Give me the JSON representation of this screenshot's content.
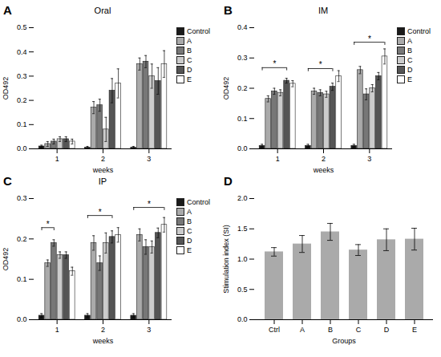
{
  "chart_data": [
    {
      "type": "bar",
      "title": "Oral",
      "annotations": [
        "A"
      ],
      "xlabel": "weeks",
      "ylabel": "OD492",
      "categories": [
        "1",
        "2",
        "3"
      ],
      "series": [
        {
          "name": "Control",
          "color": "#1a1a1a",
          "values": [
            0.01,
            0.005,
            0.005
          ],
          "errors": [
            0.005,
            0.005,
            0.005
          ]
        },
        {
          "name": "A",
          "color": "#aaaaaa",
          "values": [
            0.02,
            0.17,
            0.35
          ],
          "errors": [
            0.01,
            0.025,
            0.025
          ]
        },
        {
          "name": "B",
          "color": "#777777",
          "values": [
            0.03,
            0.18,
            0.36
          ],
          "errors": [
            0.01,
            0.025,
            0.025
          ]
        },
        {
          "name": "C",
          "color": "#cccccc",
          "values": [
            0.04,
            0.08,
            0.3
          ],
          "errors": [
            0.01,
            0.05,
            0.05
          ]
        },
        {
          "name": "D",
          "color": "#555555",
          "values": [
            0.04,
            0.24,
            0.28
          ],
          "errors": [
            0.01,
            0.05,
            0.055
          ]
        },
        {
          "name": "E",
          "color": "#ffffff",
          "values": [
            0.03,
            0.27,
            0.35
          ],
          "errors": [
            0.01,
            0.06,
            0.055
          ]
        }
      ],
      "ylim": [
        0,
        0.5
      ],
      "yticks": [
        {
          "value": 0,
          "label": "0.0"
        },
        0.1,
        0.2,
        0.3,
        0.4,
        0.5
      ],
      "grid": false,
      "legend": "right",
      "significance": []
    },
    {
      "type": "bar",
      "title": "IM",
      "annotations": [
        "B"
      ],
      "xlabel": "weeks",
      "ylabel": "OD492",
      "categories": [
        "1",
        "2",
        "3"
      ],
      "series": [
        {
          "name": "Control",
          "color": "#1a1a1a",
          "values": [
            0.01,
            0.01,
            0.01
          ],
          "errors": [
            0.005,
            0.005,
            0.005
          ]
        },
        {
          "name": "A",
          "color": "#aaaaaa",
          "values": [
            0.165,
            0.19,
            0.26
          ],
          "errors": [
            0.01,
            0.01,
            0.012
          ]
        },
        {
          "name": "B",
          "color": "#777777",
          "values": [
            0.19,
            0.185,
            0.18
          ],
          "errors": [
            0.01,
            0.01,
            0.018
          ]
        },
        {
          "name": "C",
          "color": "#cccccc",
          "values": [
            0.185,
            0.18,
            0.2
          ],
          "errors": [
            0.01,
            0.01,
            0.012
          ]
        },
        {
          "name": "D",
          "color": "#555555",
          "values": [
            0.225,
            0.205,
            0.24
          ],
          "errors": [
            0.008,
            0.012,
            0.012
          ]
        },
        {
          "name": "E",
          "color": "#ffffff",
          "values": [
            0.215,
            0.24,
            0.305
          ],
          "errors": [
            0.01,
            0.018,
            0.025
          ]
        }
      ],
      "ylim": [
        0,
        0.4
      ],
      "yticks": [
        {
          "value": 0,
          "label": "0.0"
        },
        0.1,
        0.2,
        0.3,
        0.4
      ],
      "grid": false,
      "legend": "right",
      "significance": [
        {
          "category": "1",
          "from": "Control",
          "to": "D",
          "y": 0.268,
          "label": "*"
        },
        {
          "category": "2",
          "from": "Control",
          "to": "D",
          "y": 0.265,
          "label": "*"
        },
        {
          "category": "3",
          "from": "Control",
          "to": "E",
          "y": 0.352,
          "label": "*"
        }
      ]
    },
    {
      "type": "bar",
      "title": "IP",
      "annotations": [
        "C"
      ],
      "xlabel": "weeks",
      "ylabel": "OD492",
      "categories": [
        "1",
        "2",
        "3"
      ],
      "series": [
        {
          "name": "Control",
          "color": "#1a1a1a",
          "values": [
            0.01,
            0.01,
            0.01
          ],
          "errors": [
            0.005,
            0.005,
            0.005
          ]
        },
        {
          "name": "A",
          "color": "#aaaaaa",
          "values": [
            0.14,
            0.19,
            0.21
          ],
          "errors": [
            0.008,
            0.018,
            0.015
          ]
        },
        {
          "name": "B",
          "color": "#777777",
          "values": [
            0.19,
            0.14,
            0.18
          ],
          "errors": [
            0.008,
            0.018,
            0.018
          ]
        },
        {
          "name": "C",
          "color": "#cccccc",
          "values": [
            0.16,
            0.19,
            0.18
          ],
          "errors": [
            0.008,
            0.025,
            0.015
          ]
        },
        {
          "name": "D",
          "color": "#555555",
          "values": [
            0.16,
            0.205,
            0.215
          ],
          "errors": [
            0.008,
            0.015,
            0.012
          ]
        },
        {
          "name": "E",
          "color": "#ffffff",
          "values": [
            0.12,
            0.21,
            0.235
          ],
          "errors": [
            0.01,
            0.018,
            0.018
          ]
        }
      ],
      "ylim": [
        0,
        0.3
      ],
      "yticks": [
        {
          "value": 0,
          "label": "0.0"
        },
        0.1,
        0.2,
        0.3
      ],
      "grid": false,
      "legend": "right",
      "significance": [
        {
          "category": "1",
          "from": "Control",
          "to": "B",
          "y": 0.228,
          "label": "*"
        },
        {
          "category": "2",
          "from": "Control",
          "to": "D",
          "y": 0.258,
          "label": "*"
        },
        {
          "category": "3",
          "from": "Control",
          "to": "E",
          "y": 0.278,
          "label": "*"
        }
      ]
    },
    {
      "type": "bar",
      "annotations": [
        "D"
      ],
      "xlabel": "Groups",
      "ylabel": "Stimulation index (SI)",
      "categories": [
        "Ctrl",
        "A",
        "B",
        "C",
        "D",
        "E"
      ],
      "values": [
        1.12,
        1.25,
        1.45,
        1.15,
        1.32,
        1.33
      ],
      "errors": [
        0.07,
        0.14,
        0.14,
        0.09,
        0.18,
        0.18
      ],
      "color": "#aaaaaa",
      "ylim": [
        0,
        2.0
      ],
      "yticks": [
        {
          "value": 0,
          "label": "0.0"
        },
        0.5,
        {
          "value": 1,
          "label": "1.0"
        },
        1.5,
        {
          "value": 2,
          "label": "2.0"
        }
      ],
      "grid": false
    }
  ]
}
